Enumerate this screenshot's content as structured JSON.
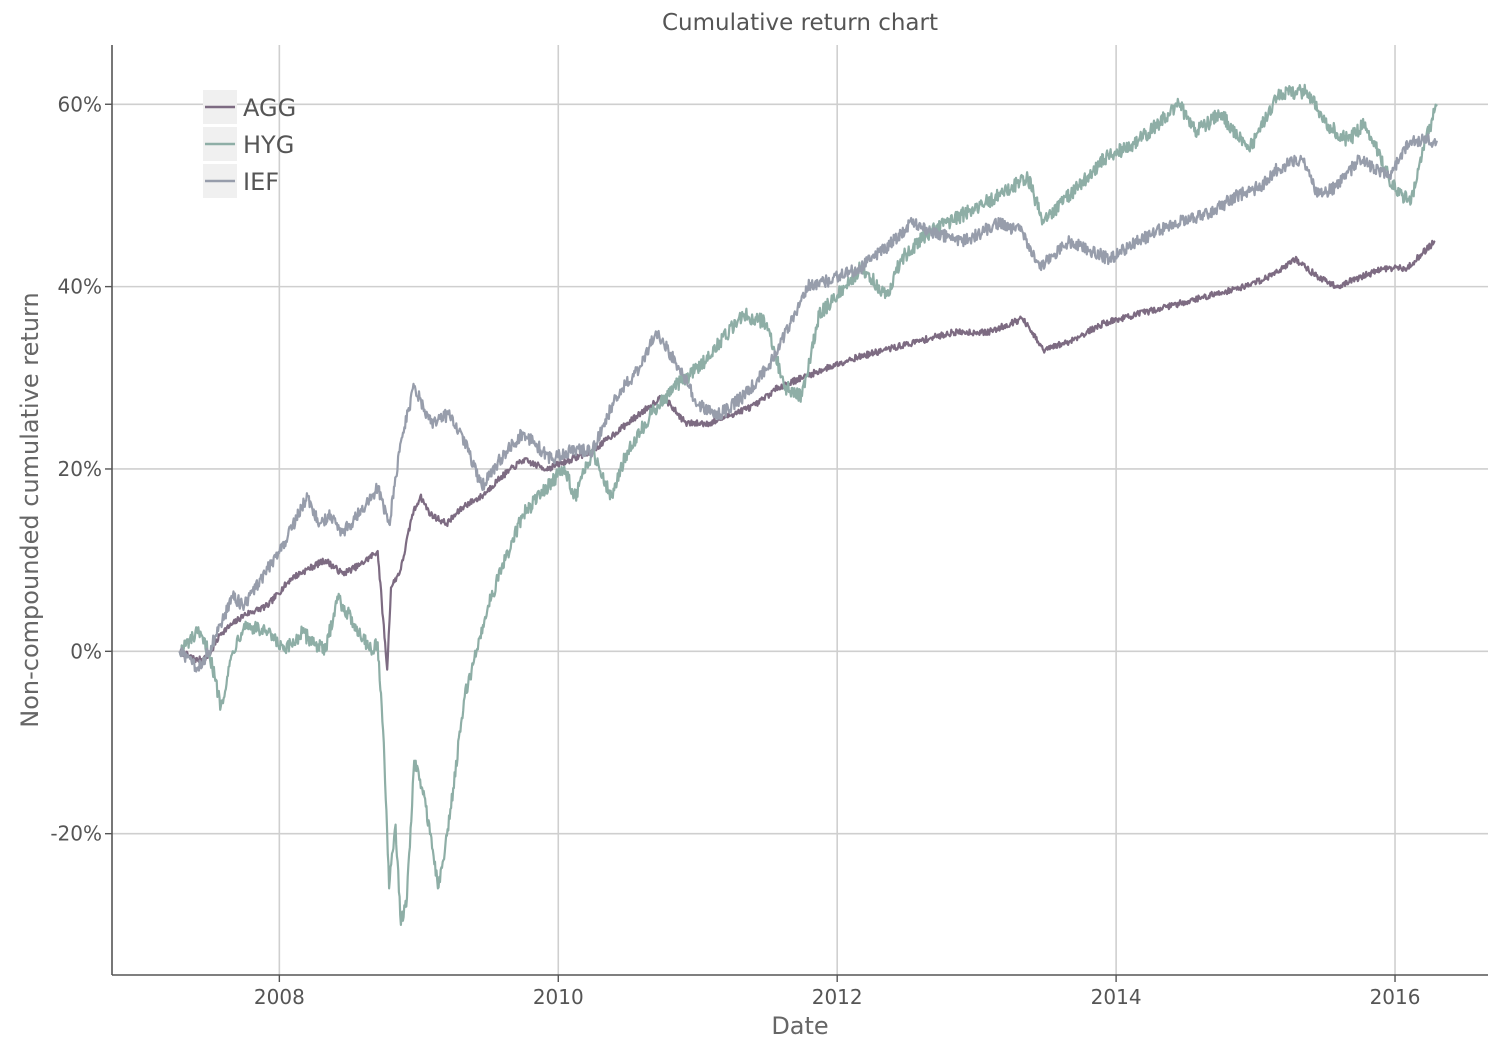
{
  "chart_data": {
    "type": "line",
    "title": "Cumulative return chart",
    "xlabel": "Date",
    "ylabel": "Non-compounded cumulative return",
    "xlim": [
      "2006-10-20",
      "2016-09-01"
    ],
    "ylim": [
      -0.355,
      0.665
    ],
    "x_ticks": [
      2008,
      2010,
      2012,
      2014,
      2016
    ],
    "x_tick_labels": [
      "2008",
      "2010",
      "2012",
      "2014",
      "2016"
    ],
    "y_ticks": [
      -0.2,
      0.0,
      0.2,
      0.4,
      0.6
    ],
    "y_tick_labels": [
      "-20%",
      "0%",
      "20%",
      "40%",
      "60%"
    ],
    "grid": true,
    "legend_position": "top-left",
    "series": [
      {
        "name": "AGG",
        "color": "#7d6b82",
        "points": [
          [
            "2007-04-15",
            0.0
          ],
          [
            "2007-06-01",
            -0.01
          ],
          [
            "2007-07-01",
            -0.005
          ],
          [
            "2007-08-01",
            0.02
          ],
          [
            "2007-09-01",
            0.03
          ],
          [
            "2007-10-01",
            0.04
          ],
          [
            "2007-12-01",
            0.05
          ],
          [
            "2008-02-01",
            0.08
          ],
          [
            "2008-03-15",
            0.09
          ],
          [
            "2008-05-01",
            0.1
          ],
          [
            "2008-06-15",
            0.085
          ],
          [
            "2008-08-01",
            0.095
          ],
          [
            "2008-09-15",
            0.11
          ],
          [
            "2008-10-10",
            -0.02
          ],
          [
            "2008-10-20",
            0.07
          ],
          [
            "2008-11-15",
            0.09
          ],
          [
            "2008-12-15",
            0.15
          ],
          [
            "2009-01-05",
            0.17
          ],
          [
            "2009-02-01",
            0.15
          ],
          [
            "2009-03-15",
            0.14
          ],
          [
            "2009-05-01",
            0.16
          ],
          [
            "2009-06-15",
            0.17
          ],
          [
            "2009-08-01",
            0.19
          ],
          [
            "2009-10-01",
            0.21
          ],
          [
            "2009-12-01",
            0.2
          ],
          [
            "2010-02-01",
            0.21
          ],
          [
            "2010-04-01",
            0.22
          ],
          [
            "2010-06-01",
            0.24
          ],
          [
            "2010-08-01",
            0.26
          ],
          [
            "2010-10-01",
            0.28
          ],
          [
            "2010-12-01",
            0.25
          ],
          [
            "2011-02-01",
            0.25
          ],
          [
            "2011-04-01",
            0.26
          ],
          [
            "2011-06-01",
            0.27
          ],
          [
            "2011-08-01",
            0.29
          ],
          [
            "2011-10-01",
            0.3
          ],
          [
            "2011-12-01",
            0.31
          ],
          [
            "2012-02-01",
            0.32
          ],
          [
            "2012-05-01",
            0.33
          ],
          [
            "2012-08-01",
            0.34
          ],
          [
            "2012-11-01",
            0.35
          ],
          [
            "2013-02-01",
            0.35
          ],
          [
            "2013-05-01",
            0.365
          ],
          [
            "2013-06-25",
            0.33
          ],
          [
            "2013-09-01",
            0.34
          ],
          [
            "2013-12-01",
            0.36
          ],
          [
            "2014-03-01",
            0.37
          ],
          [
            "2014-06-01",
            0.38
          ],
          [
            "2014-09-01",
            0.39
          ],
          [
            "2014-12-01",
            0.4
          ],
          [
            "2015-02-01",
            0.41
          ],
          [
            "2015-04-15",
            0.43
          ],
          [
            "2015-06-15",
            0.41
          ],
          [
            "2015-08-01",
            0.4
          ],
          [
            "2015-10-01",
            0.41
          ],
          [
            "2015-12-01",
            0.42
          ],
          [
            "2016-02-01",
            0.42
          ],
          [
            "2016-04-15",
            0.45
          ]
        ]
      },
      {
        "name": "HYG",
        "color": "#8eaea6",
        "points": [
          [
            "2007-04-15",
            0.0
          ],
          [
            "2007-06-01",
            0.02
          ],
          [
            "2007-07-01",
            0.0
          ],
          [
            "2007-08-01",
            -0.06
          ],
          [
            "2007-09-01",
            0.0
          ],
          [
            "2007-10-01",
            0.03
          ],
          [
            "2007-12-01",
            0.02
          ],
          [
            "2008-01-15",
            0.0
          ],
          [
            "2008-03-01",
            0.02
          ],
          [
            "2008-05-01",
            0.0
          ],
          [
            "2008-06-01",
            0.06
          ],
          [
            "2008-07-15",
            0.03
          ],
          [
            "2008-09-01",
            0.0
          ],
          [
            "2008-09-15",
            0.01
          ],
          [
            "2008-10-01",
            -0.1
          ],
          [
            "2008-10-15",
            -0.26
          ],
          [
            "2008-11-01",
            -0.19
          ],
          [
            "2008-11-15",
            -0.3
          ],
          [
            "2008-12-01",
            -0.27
          ],
          [
            "2008-12-20",
            -0.12
          ],
          [
            "2009-01-10",
            -0.15
          ],
          [
            "2009-02-01",
            -0.2
          ],
          [
            "2009-02-20",
            -0.26
          ],
          [
            "2009-03-10",
            -0.22
          ],
          [
            "2009-04-01",
            -0.15
          ],
          [
            "2009-05-01",
            -0.05
          ],
          [
            "2009-06-01",
            0.0
          ],
          [
            "2009-07-01",
            0.05
          ],
          [
            "2009-08-15",
            0.1
          ],
          [
            "2009-10-01",
            0.15
          ],
          [
            "2009-12-01",
            0.18
          ],
          [
            "2010-01-15",
            0.2
          ],
          [
            "2010-02-15",
            0.17
          ],
          [
            "2010-04-01",
            0.22
          ],
          [
            "2010-05-20",
            0.17
          ],
          [
            "2010-07-01",
            0.22
          ],
          [
            "2010-09-01",
            0.26
          ],
          [
            "2010-11-01",
            0.29
          ],
          [
            "2011-01-01",
            0.31
          ],
          [
            "2011-03-01",
            0.34
          ],
          [
            "2011-05-01",
            0.37
          ],
          [
            "2011-07-01",
            0.36
          ],
          [
            "2011-08-15",
            0.29
          ],
          [
            "2011-10-01",
            0.28
          ],
          [
            "2011-11-15",
            0.37
          ],
          [
            "2012-01-01",
            0.39
          ],
          [
            "2012-03-01",
            0.42
          ],
          [
            "2012-05-15",
            0.39
          ],
          [
            "2012-06-15",
            0.43
          ],
          [
            "2012-09-01",
            0.46
          ],
          [
            "2012-12-01",
            0.48
          ],
          [
            "2013-03-01",
            0.5
          ],
          [
            "2013-05-15",
            0.52
          ],
          [
            "2013-06-25",
            0.47
          ],
          [
            "2013-09-01",
            0.5
          ],
          [
            "2013-12-01",
            0.54
          ],
          [
            "2014-03-01",
            0.56
          ],
          [
            "2014-06-15",
            0.6
          ],
          [
            "2014-08-01",
            0.57
          ],
          [
            "2014-10-01",
            0.59
          ],
          [
            "2014-12-15",
            0.55
          ],
          [
            "2015-03-01",
            0.61
          ],
          [
            "2015-05-15",
            0.615
          ],
          [
            "2015-07-01",
            0.58
          ],
          [
            "2015-09-01",
            0.56
          ],
          [
            "2015-10-15",
            0.58
          ],
          [
            "2015-12-15",
            0.52
          ],
          [
            "2016-02-10",
            0.49
          ],
          [
            "2016-03-15",
            0.55
          ],
          [
            "2016-04-20",
            0.6
          ]
        ]
      },
      {
        "name": "IEF",
        "color": "#979dab",
        "points": [
          [
            "2007-04-15",
            0.0
          ],
          [
            "2007-06-01",
            -0.02
          ],
          [
            "2007-07-01",
            0.0
          ],
          [
            "2007-08-01",
            0.03
          ],
          [
            "2007-09-01",
            0.06
          ],
          [
            "2007-10-01",
            0.05
          ],
          [
            "2007-12-01",
            0.09
          ],
          [
            "2008-01-15",
            0.12
          ],
          [
            "2008-03-15",
            0.17
          ],
          [
            "2008-04-15",
            0.14
          ],
          [
            "2008-05-15",
            0.15
          ],
          [
            "2008-06-15",
            0.13
          ],
          [
            "2008-08-15",
            0.16
          ],
          [
            "2008-09-15",
            0.18
          ],
          [
            "2008-10-15",
            0.14
          ],
          [
            "2008-11-15",
            0.23
          ],
          [
            "2008-12-20",
            0.29
          ],
          [
            "2009-02-01",
            0.25
          ],
          [
            "2009-03-20",
            0.26
          ],
          [
            "2009-05-01",
            0.23
          ],
          [
            "2009-06-15",
            0.18
          ],
          [
            "2009-08-01",
            0.21
          ],
          [
            "2009-10-01",
            0.24
          ],
          [
            "2009-12-15",
            0.21
          ],
          [
            "2010-02-01",
            0.22
          ],
          [
            "2010-04-01",
            0.22
          ],
          [
            "2010-06-01",
            0.28
          ],
          [
            "2010-08-01",
            0.31
          ],
          [
            "2010-09-15",
            0.35
          ],
          [
            "2010-11-15",
            0.31
          ],
          [
            "2011-01-01",
            0.27
          ],
          [
            "2011-03-01",
            0.26
          ],
          [
            "2011-05-01",
            0.28
          ],
          [
            "2011-07-01",
            0.31
          ],
          [
            "2011-09-01",
            0.36
          ],
          [
            "2011-10-15",
            0.4
          ],
          [
            "2012-01-01",
            0.41
          ],
          [
            "2012-03-01",
            0.42
          ],
          [
            "2012-05-01",
            0.44
          ],
          [
            "2012-07-15",
            0.47
          ],
          [
            "2012-09-01",
            0.46
          ],
          [
            "2012-12-01",
            0.45
          ],
          [
            "2013-03-01",
            0.47
          ],
          [
            "2013-05-01",
            0.46
          ],
          [
            "2013-06-15",
            0.42
          ],
          [
            "2013-09-01",
            0.45
          ],
          [
            "2013-12-15",
            0.43
          ],
          [
            "2014-03-01",
            0.45
          ],
          [
            "2014-06-01",
            0.47
          ],
          [
            "2014-09-01",
            0.48
          ],
          [
            "2014-11-15",
            0.5
          ],
          [
            "2015-01-15",
            0.51
          ],
          [
            "2015-03-01",
            0.53
          ],
          [
            "2015-05-01",
            0.54
          ],
          [
            "2015-06-15",
            0.5
          ],
          [
            "2015-08-01",
            0.51
          ],
          [
            "2015-10-01",
            0.54
          ],
          [
            "2015-12-15",
            0.52
          ],
          [
            "2016-02-10",
            0.56
          ],
          [
            "2016-04-20",
            0.56
          ]
        ]
      }
    ]
  }
}
